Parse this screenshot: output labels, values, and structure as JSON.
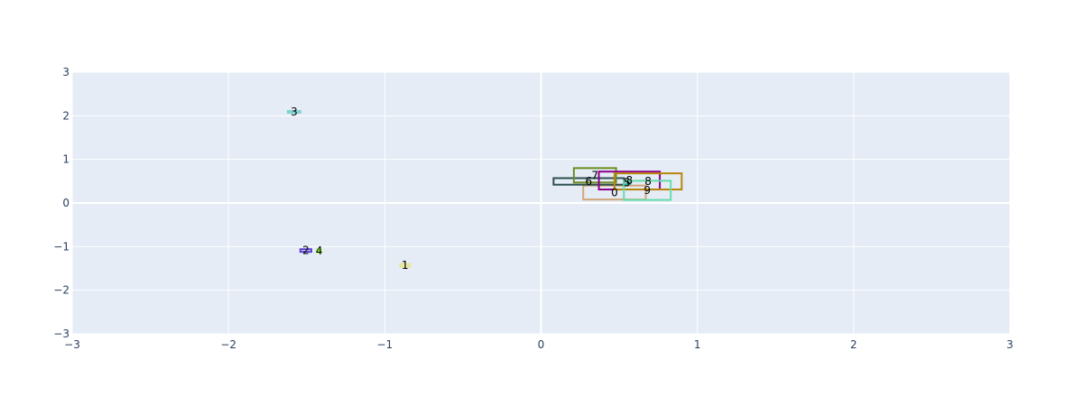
{
  "chart_data": {
    "type": "scatter",
    "title": "",
    "xlabel": "",
    "ylabel": "",
    "xlim": [
      -3,
      3
    ],
    "ylim": [
      -3,
      3
    ],
    "x_ticks": [
      "−3",
      "−2",
      "−1",
      "0",
      "1",
      "2",
      "3"
    ],
    "y_ticks": [
      "−3",
      "−2",
      "−1",
      "0",
      "1",
      "2",
      "3"
    ],
    "grid": true,
    "legend": "none",
    "colors": {
      "plot_bg": "#E5ECF6",
      "grid": "#ffffff",
      "tick_text": "#2a3f5f"
    },
    "boxes": [
      {
        "label": "0",
        "x0": 0.27,
        "x1": 0.67,
        "y0": 0.08,
        "y1": 0.4,
        "color": "#D2A679"
      },
      {
        "label": "1",
        "x0": -0.9,
        "x1": -0.84,
        "y0": -1.46,
        "y1": -1.4,
        "color": "#E6E68A"
      },
      {
        "label": "2",
        "x0": -1.54,
        "x1": -1.47,
        "y0": -1.12,
        "y1": -1.06,
        "color": "#5B3FD1"
      },
      {
        "label": "3",
        "x0": -1.62,
        "x1": -1.54,
        "y0": 2.07,
        "y1": 2.11,
        "color": "#7FD3D3"
      },
      {
        "label": "4",
        "x0": -1.43,
        "x1": -1.41,
        "y0": -1.13,
        "y1": -1.07,
        "color": "#7CFC00"
      },
      {
        "label": "5",
        "x0": 0.53,
        "x1": 0.57,
        "y0": 0.43,
        "y1": 0.5,
        "color": "#20B2AA"
      },
      {
        "label": "6",
        "x0": 0.08,
        "x1": 0.53,
        "y0": 0.42,
        "y1": 0.57,
        "color": "#2F4F4F"
      },
      {
        "label": "7",
        "x0": 0.21,
        "x1": 0.48,
        "y0": 0.47,
        "y1": 0.8,
        "color": "#6B8E23"
      },
      {
        "label": "8",
        "x0": 0.37,
        "x1": 0.76,
        "y0": 0.31,
        "y1": 0.72,
        "color": "#8B008B"
      },
      {
        "label": "8",
        "x0": 0.47,
        "x1": 0.9,
        "y0": 0.31,
        "y1": 0.68,
        "color": "#B8860B"
      },
      {
        "label": "9",
        "x0": 0.53,
        "x1": 0.83,
        "y0": 0.07,
        "y1": 0.51,
        "color": "#66DDAA"
      }
    ]
  }
}
